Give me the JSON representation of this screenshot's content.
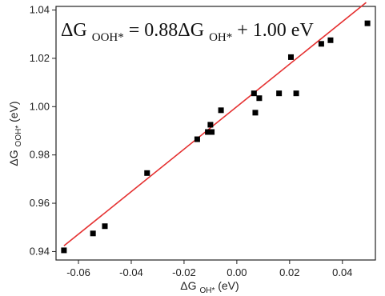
{
  "chart_data": {
    "type": "scatter",
    "title": "",
    "xlabel": {
      "prefix": "ΔG",
      "subscript": "OH*",
      "suffix": "(eV)"
    },
    "ylabel": {
      "prefix": "ΔG",
      "subscript": "OOH*",
      "suffix": "(eV)"
    },
    "xlim": [
      -0.0685,
      0.0525
    ],
    "ylim": [
      0.9365,
      1.0415
    ],
    "x_ticks": [
      -0.06,
      -0.04,
      -0.02,
      0.0,
      0.02,
      0.04
    ],
    "x_tick_labels": [
      "-0.06",
      "-0.04",
      "-0.02",
      "0.00",
      "0.02",
      "0.04"
    ],
    "y_ticks": [
      0.94,
      0.96,
      0.98,
      1.0,
      1.02,
      1.04
    ],
    "y_tick_labels": [
      "0.94",
      "0.96",
      "0.98",
      "1.00",
      "1.02",
      "1.04"
    ],
    "grid": false,
    "legend": "none",
    "series": [
      {
        "points": [
          [
            -0.0655,
            0.9405
          ],
          [
            -0.0545,
            0.9475
          ],
          [
            -0.05,
            0.9505
          ],
          [
            -0.034,
            0.9725
          ],
          [
            -0.015,
            0.9865
          ],
          [
            -0.011,
            0.9895
          ],
          [
            -0.01,
            0.9925
          ],
          [
            -0.0095,
            0.9895
          ],
          [
            -0.006,
            0.9985
          ],
          [
            0.0065,
            1.0055
          ],
          [
            0.007,
            0.9975
          ],
          [
            0.0085,
            1.0035
          ],
          [
            0.016,
            1.0055
          ],
          [
            0.0205,
            1.0205
          ],
          [
            0.0225,
            1.0055
          ],
          [
            0.032,
            1.026
          ],
          [
            0.0355,
            1.0275
          ],
          [
            0.0495,
            1.0345
          ]
        ]
      }
    ],
    "fit_line": {
      "slope": 0.88,
      "intercept": 1.0,
      "x_start": -0.0655,
      "x_end": 0.049
    },
    "annotation": {
      "left_prefix": "ΔG",
      "left_subscript": "OOH*",
      "middle": " = 0.88ΔG",
      "right_subscript": "OH*",
      "suffix": " + 1.00 eV"
    },
    "colors": {
      "axes": "#222222",
      "points": "#000000",
      "fit_line": "#e53030",
      "text": "#111111"
    }
  }
}
